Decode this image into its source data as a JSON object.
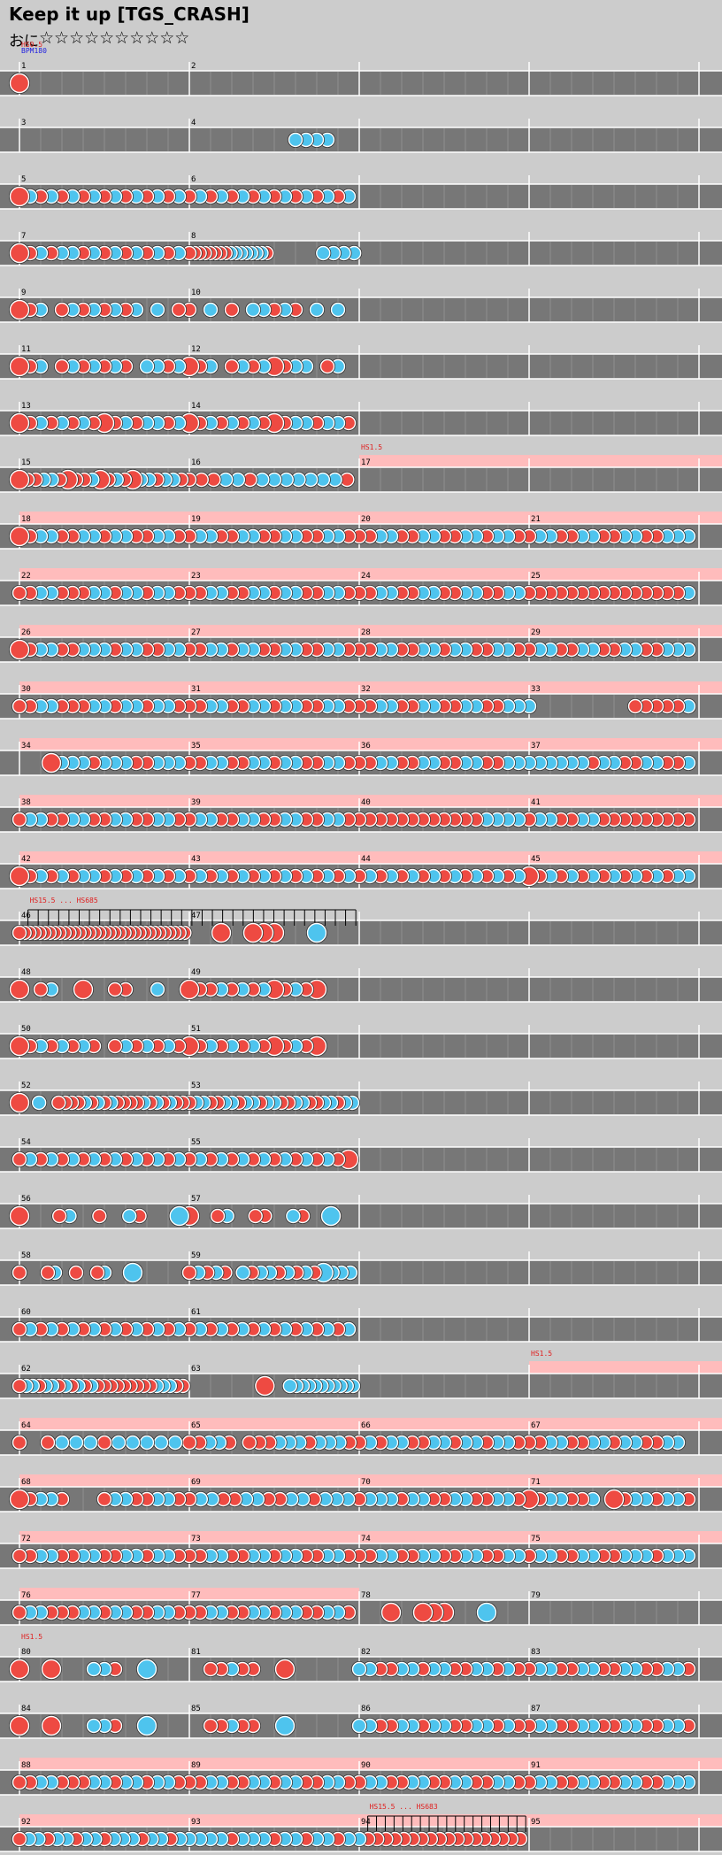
{
  "song": {
    "title": "Keep it up [TGS_CRASH]",
    "difficulty_label": "おに",
    "stars": "☆☆☆☆☆☆☆☆☆☆"
  },
  "colors": {
    "background": "#cccccc",
    "lane": "#777777",
    "lane_line": "#ffffff",
    "gogo": "#ffbcbc",
    "don": "#ee4a42",
    "ka": "#4ec4ee",
    "annotation_red": "#e02020",
    "annotation_blue": "#2020e0"
  },
  "annotations": [
    {
      "row": 1,
      "measure": 0,
      "frac": 0,
      "lines": [
        {
          "text": "HS0.5",
          "color": "red"
        },
        {
          "text": "BPM180",
          "color": "blue"
        }
      ]
    },
    {
      "row": 8,
      "measure": 2,
      "frac": 0,
      "lines": [
        {
          "text": "HS1.5",
          "color": "red"
        }
      ]
    },
    {
      "row": 16,
      "measure": 0,
      "frac": 0.05,
      "lines": [
        {
          "text": "HS15.5 ... HS685",
          "color": "red"
        }
      ]
    },
    {
      "row": 24,
      "measure": 3,
      "frac": 0,
      "lines": [
        {
          "text": "HS1.5",
          "color": "red"
        }
      ]
    },
    {
      "row": 29,
      "measure": 0,
      "frac": 0,
      "lines": [
        {
          "text": "HS1.5",
          "color": "red"
        }
      ]
    },
    {
      "row": 32,
      "measure": 2,
      "frac": 0.05,
      "lines": [
        {
          "text": "HS15.5 ... HS683",
          "color": "red"
        }
      ]
    }
  ],
  "rows": [
    {
      "measures": [
        1,
        2,
        null,
        null
      ],
      "gogo": [],
      "notes": [
        [
          0,
          0,
          "dl"
        ]
      ]
    },
    {
      "measures": [
        3,
        4,
        null,
        null
      ],
      "gogo": [],
      "notes": [
        [
          1,
          10,
          "k"
        ],
        [
          1,
          11,
          "k"
        ],
        [
          1,
          12,
          "k"
        ],
        [
          1,
          13,
          "k"
        ]
      ]
    },
    {
      "measures": [
        5,
        6,
        null,
        null
      ],
      "gogo": [],
      "pat": [
        "Dkdkdkdkdkdkdkdk",
        "dkdkdkdkdkdkdkdk"
      ]
    },
    {
      "measures": [
        7,
        8,
        null,
        null
      ],
      "gogo": [],
      "pat": [
        "Ddkdkkdkdkdkdkdk",
        "ddddddddkkkkkkkd..........k.k.k.k"
      ]
    },
    {
      "measures": [
        9,
        10,
        null,
        null
      ],
      "gogo": [],
      "pat": [
        "Ddk.dkdkdkdk.k.d",
        "d.k.d.kkdkd.k.k."
      ]
    },
    {
      "measures": [
        11,
        12,
        null,
        null
      ],
      "gogo": [],
      "pat": [
        "Ddk.dkdkdkd.kkdk",
        "Ddk.dkdkDdkk.dk."
      ]
    },
    {
      "measures": [
        13,
        14,
        null,
        null
      ],
      "gogo": [],
      "pat": [
        "DdkdkdkdDdkdkkdk",
        "DdkdkdkdDdkkdkkd"
      ]
    },
    {
      "measures": [
        15,
        16,
        17,
        null
      ],
      "gogo": [
        [
          2,
          0,
          4,
          1
        ]
      ],
      "pat": [
        "DddkkdDddkDdkdDkkdkkd",
        "dddkkdkkkkkkkd"
      ]
    },
    {
      "measures": [
        18,
        19,
        20,
        21
      ],
      "gogo": [
        [
          0,
          0,
          4,
          1
        ]
      ],
      "pat": [
        "Ddkkddkkdkkddkkd",
        "dkkddkkddkkddkkd",
        "ddkkddkkddkkdkkd",
        "dkkddkkddkkddkkk"
      ]
    },
    {
      "measures": [
        22,
        23,
        24,
        25
      ],
      "gogo": [
        [
          0,
          0,
          4,
          1
        ]
      ],
      "pat": [
        "ddkkdddkkdkkdkkd",
        "ddkkddkkdkkddkkd",
        "ddkkddkkddkkddkk",
        "dddddddddddddddk"
      ]
    },
    {
      "measures": [
        26,
        27,
        28,
        29
      ],
      "gogo": [
        [
          0,
          0,
          4,
          1
        ]
      ],
      "pat": [
        "Ddkkddkkkdkkddkk",
        "ddkkdkkddkkddkkd",
        "ddkkddkkdkkddkkd",
        "dkkddkkddkkddkkk"
      ]
    },
    {
      "measures": [
        30,
        31,
        32,
        33
      ],
      "gogo": [
        [
          0,
          0,
          4,
          1
        ]
      ],
      "pat": [
        "ddkkdddkkdkkdkkd",
        "ddkkddkkdkkddkkd",
        "ddkkddkkddkkddkk",
        "k.........dddddk"
      ]
    },
    {
      "measures": [
        34,
        35,
        36,
        37
      ],
      "gogo": [
        [
          0,
          0,
          4,
          1
        ]
      ],
      "pat": [
        "...Dkkkdkkkddkkk",
        "ddkkddkkdkkddkkd",
        "ddkkddkkddkkddkk",
        "kkkkkkdkkddkkddk"
      ]
    },
    {
      "measures": [
        38,
        39,
        40,
        41
      ],
      "gogo": [
        [
          0,
          0,
          4,
          1
        ]
      ],
      "pat": [
        "dkkddkkddkkddkkd",
        "dkkddkkddkkddkkd",
        "ddddddddddddkkkk",
        "dkkddkkddddddddd"
      ]
    },
    {
      "measures": [
        42,
        43,
        44,
        45
      ],
      "gogo": [
        [
          0,
          0,
          4,
          1
        ]
      ],
      "pat": [
        "Ddkdkdkkdkdkdkdk",
        "dkdkdkdkdkdkdkdk",
        "dkdkdkdkdkdkdkdk",
        "Ddkdkdkdkdkdkdkk"
      ]
    },
    {
      "measures": [
        46,
        47,
        null,
        null
      ],
      "gogo": [],
      "pat": [
        "dddddddddddddddddddddddddddddddddd",
        "...D..DDD...K..."
      ],
      "rollbars": [
        [
          0,
          0.05,
          1,
          0.98,
          32
        ]
      ]
    },
    {
      "measures": [
        48,
        49,
        null,
        null
      ],
      "gogo": [],
      "pat": [
        "D.dk..D..dd..k..",
        "DddkdkdkDdkdD..."
      ]
    },
    {
      "measures": [
        50,
        51,
        null,
        null
      ],
      "gogo": [],
      "pat": [
        "Ddkdkdkd.dkdkdkd",
        "DdkdkdkdDdkdD..."
      ]
    },
    {
      "measures": [
        52,
        53,
        null,
        null
      ],
      "gogo": [],
      "pat": [
        "D..k..ddddkdkdkddddkdkdkdd",
        "dkkddkkdkkdkkddkkddkkdkk"
      ]
    },
    {
      "measures": [
        54,
        55,
        null,
        null
      ],
      "gogo": [],
      "pat": [
        "dkdkdkdkdkdkdkdk",
        "dkdkdkdkdkdkdkdD"
      ]
    },
    {
      "measures": [
        56,
        57,
        null,
        null
      ],
      "gogo": [],
      "pat": [
        "D...dk..d..kd...K",
        "D..dk..dd..kd..K.."
      ]
    },
    {
      "measures": [
        58,
        59,
        null,
        null
      ],
      "gogo": [],
      "pat": [
        "d...dk..d..dk...K.......",
        "dkdkd.kdkkdkdkdKkkk"
      ]
    },
    {
      "measures": [
        60,
        61,
        null,
        null
      ],
      "gogo": [],
      "pat": [
        "dkdkdkdkdkdkdkdk",
        "dkdkdkdkdkdkdkdk"
      ]
    },
    {
      "measures": [
        62,
        63,
        null,
        null
      ],
      "gogo": [
        [
          3,
          0,
          4,
          1
        ]
      ],
      "pat": [
        "dkkdkkdkdkdkdddddddddkkkdd",
        "............D...kkkkkkkkkkk"
      ]
    },
    {
      "measures": [
        64,
        65,
        66,
        67
      ],
      "gogo": [
        [
          0,
          0,
          4,
          1
        ]
      ],
      "pat": [
        "d.dkkkdkkkkk",
        "ddkkd.dddkkkdkkkd",
        "dkdkkddkkdkkdkkd",
        "ddkkddkkdkkddkk."
      ]
    },
    {
      "measures": [
        68,
        69,
        70,
        71
      ],
      "gogo": [
        [
          0,
          0,
          4,
          1
        ]
      ],
      "pat": [
        "Ddkkd...dkkddkkd",
        "dkkddkkddkkdkkk",
        "dkkkdkkddkkddkkd",
        "Ddkkddk.Ddkkdkkd"
      ]
    },
    {
      "measures": [
        72,
        73,
        74,
        75
      ],
      "gogo": [
        [
          0,
          0,
          4,
          1
        ]
      ],
      "pat": [
        "ddkkddkkddkkdkkd",
        "ddkkddkkdkkddkkd",
        "ddkkddkkddkkddkk",
        "dkkddkkddkkkdkkk"
      ]
    },
    {
      "measures": [
        76,
        77,
        78,
        79
      ],
      "gogo": [
        [
          0,
          0,
          2,
          1
        ]
      ],
      "pat": [
        "dkkdddkkdkkddkkd",
        "ddkkddkkdkkddkkd",
        "...D..DDD...K...",
        "........"
      ]
    },
    {
      "measures": [
        80,
        81,
        82,
        83
      ],
      "gogo": [],
      "pat": [
        "D..D...kkd..K...",
        "..ddkdd..D......",
        "kkddkkdkkddkkdkd",
        "dkkddkkddkkddkkd"
      ]
    },
    {
      "measures": [
        84,
        85,
        86,
        87
      ],
      "gogo": [],
      "pat": [
        "D..D...kkd..K...",
        "..ddkdd..K......",
        "kkddkkdkkddkkdkd",
        "dkkddkkddkkddkkd"
      ]
    },
    {
      "measures": [
        88,
        89,
        90,
        91
      ],
      "gogo": [
        [
          0,
          0,
          4,
          1
        ]
      ],
      "pat": [
        "ddkkdddkkdkkdkkd",
        "ddkkddkkdkkddkkd",
        "dkkddkkddkkddkkd",
        "dkkddkkddkkddkkk"
      ]
    },
    {
      "measures": [
        92,
        93,
        94,
        95
      ],
      "gogo": [
        [
          0,
          0,
          4,
          1
        ]
      ],
      "pat": [
        "dkkdkkdkkdkkkdkkdk",
        "kkkkdkkkdkkdkkdk",
        "kdddddddddddddddddd",
        "................"
      ],
      "rollbars": [
        [
          2,
          0.05,
          2,
          0.98,
          18
        ]
      ]
    }
  ]
}
